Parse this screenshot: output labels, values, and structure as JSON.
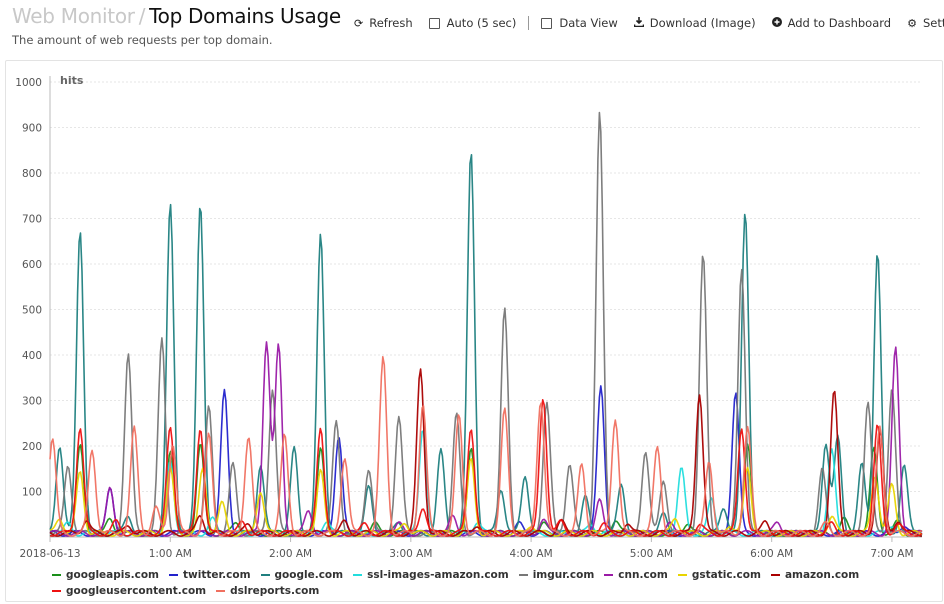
{
  "header": {
    "breadcrumb_parent": "Web Monitor",
    "breadcrumb_sep": "/",
    "page_title": "Top Domains Usage",
    "subtitle": "The amount of web requests per top domain."
  },
  "toolbar": {
    "refresh": "Refresh",
    "auto": "Auto (5 sec)",
    "data_view": "Data View",
    "download": "Download (Image)",
    "add_dashboard": "Add to Dashboard",
    "settings": "Setti"
  },
  "chart_data": {
    "type": "line",
    "ylabel": "hits",
    "ylim": [
      0,
      1000
    ],
    "yticks": [
      100,
      200,
      300,
      400,
      500,
      600,
      700,
      800,
      900,
      1000
    ],
    "xlim": [
      0,
      7.25
    ],
    "xticks": [
      {
        "x": 0,
        "label": "2018-06-13"
      },
      {
        "x": 1,
        "label": "1:00 AM"
      },
      {
        "x": 2,
        "label": "2:00 AM"
      },
      {
        "x": 3,
        "label": "3:00 AM"
      },
      {
        "x": 4,
        "label": "4:00 AM"
      },
      {
        "x": 5,
        "label": "5:00 AM"
      },
      {
        "x": 6,
        "label": "6:00 AM"
      },
      {
        "x": 7,
        "label": "7:00 AM"
      }
    ],
    "grid": true,
    "legend_position": "bottom",
    "series": [
      {
        "name": "googleapis.com",
        "color": "#1a8f1a",
        "peaks": [
          [
            0.25,
            190
          ],
          [
            0.5,
            30
          ],
          [
            1.0,
            185
          ],
          [
            1.25,
            195
          ],
          [
            1.55,
            25
          ],
          [
            2.25,
            190
          ],
          [
            2.7,
            20
          ],
          [
            3.5,
            185
          ],
          [
            4.1,
            25
          ],
          [
            4.7,
            30
          ],
          [
            5.3,
            25
          ],
          [
            5.8,
            190
          ],
          [
            6.6,
            30
          ],
          [
            6.85,
            185
          ],
          [
            7.05,
            25
          ]
        ]
      },
      {
        "name": "twitter.com",
        "color": "#2222cc",
        "peaks": [
          [
            0.5,
            105
          ],
          [
            1.45,
            310
          ],
          [
            2.4,
            215
          ],
          [
            3.9,
            20
          ],
          [
            4.58,
            325
          ],
          [
            5.7,
            310
          ],
          [
            7.1,
            20
          ]
        ]
      },
      {
        "name": "google.com",
        "color": "#1f7f7f",
        "peaks": [
          [
            0.08,
            195
          ],
          [
            0.25,
            670
          ],
          [
            0.65,
            40
          ],
          [
            1.0,
            720
          ],
          [
            1.25,
            725
          ],
          [
            1.75,
            150
          ],
          [
            2.03,
            185
          ],
          [
            2.25,
            655
          ],
          [
            2.65,
            100
          ],
          [
            2.9,
            25
          ],
          [
            3.25,
            180
          ],
          [
            3.5,
            840
          ],
          [
            3.75,
            100
          ],
          [
            3.95,
            130
          ],
          [
            4.45,
            80
          ],
          [
            4.75,
            110
          ],
          [
            5.1,
            40
          ],
          [
            5.6,
            60
          ],
          [
            5.78,
            710
          ],
          [
            6.45,
            200
          ],
          [
            6.55,
            210
          ],
          [
            6.75,
            150
          ],
          [
            6.88,
            620
          ],
          [
            7.1,
            150
          ]
        ]
      },
      {
        "name": "ssl-images-amazon.com",
        "color": "#22dddd",
        "peaks": [
          [
            0.15,
            20
          ],
          [
            1.0,
            160
          ],
          [
            1.35,
            30
          ],
          [
            2.3,
            30
          ],
          [
            3.1,
            235
          ],
          [
            3.55,
            25
          ],
          [
            4.5,
            20
          ],
          [
            5.25,
            140
          ],
          [
            5.5,
            75
          ],
          [
            6.5,
            180
          ],
          [
            7.0,
            20
          ]
        ]
      },
      {
        "name": "imgur.com",
        "color": "#777777",
        "peaks": [
          [
            0.15,
            150
          ],
          [
            0.65,
            395
          ],
          [
            0.93,
            425
          ],
          [
            1.32,
            275
          ],
          [
            1.52,
            150
          ],
          [
            1.85,
            320
          ],
          [
            2.38,
            245
          ],
          [
            2.65,
            145
          ],
          [
            2.9,
            258
          ],
          [
            3.38,
            260
          ],
          [
            3.78,
            490
          ],
          [
            4.13,
            290
          ],
          [
            4.32,
            155
          ],
          [
            4.57,
            925
          ],
          [
            4.95,
            180
          ],
          [
            5.1,
            120
          ],
          [
            5.43,
            610
          ],
          [
            5.75,
            585
          ],
          [
            6.42,
            140
          ],
          [
            6.8,
            290
          ],
          [
            7.0,
            320
          ]
        ]
      },
      {
        "name": "cnn.com",
        "color": "#9a1aa6",
        "peaks": [
          [
            0.5,
            100
          ],
          [
            1.8,
            425
          ],
          [
            1.9,
            410
          ],
          [
            2.15,
            50
          ],
          [
            2.9,
            20
          ],
          [
            3.35,
            35
          ],
          [
            4.1,
            30
          ],
          [
            4.57,
            70
          ],
          [
            5.15,
            20
          ],
          [
            6.05,
            25
          ],
          [
            7.03,
            405
          ]
        ]
      },
      {
        "name": "gstatic.com",
        "color": "#e8d400",
        "peaks": [
          [
            0.08,
            35
          ],
          [
            0.25,
            135
          ],
          [
            1.0,
            140
          ],
          [
            1.27,
            140
          ],
          [
            1.43,
            65
          ],
          [
            1.75,
            95
          ],
          [
            2.25,
            135
          ],
          [
            2.95,
            25
          ],
          [
            3.5,
            160
          ],
          [
            4.0,
            20
          ],
          [
            5.2,
            35
          ],
          [
            5.65,
            20
          ],
          [
            5.8,
            145
          ],
          [
            6.5,
            40
          ],
          [
            6.86,
            130
          ],
          [
            7.0,
            105
          ]
        ]
      },
      {
        "name": "amazon.com",
        "color": "#aa0000",
        "peaks": [
          [
            0.3,
            30
          ],
          [
            0.65,
            20
          ],
          [
            1.25,
            40
          ],
          [
            1.65,
            20
          ],
          [
            2.45,
            25
          ],
          [
            3.08,
            360
          ],
          [
            3.55,
            20
          ],
          [
            4.25,
            25
          ],
          [
            4.8,
            25
          ],
          [
            5.4,
            310
          ],
          [
            5.95,
            25
          ],
          [
            6.52,
            310
          ],
          [
            6.9,
            225
          ],
          [
            7.05,
            30
          ]
        ]
      },
      {
        "name": "googleusercontent.com",
        "color": "#ee1111",
        "peaks": [
          [
            0.25,
            235
          ],
          [
            0.55,
            25
          ],
          [
            1.0,
            235
          ],
          [
            1.25,
            235
          ],
          [
            1.6,
            25
          ],
          [
            2.25,
            235
          ],
          [
            2.62,
            20
          ],
          [
            3.1,
            60
          ],
          [
            3.5,
            235
          ],
          [
            4.1,
            300
          ],
          [
            4.25,
            25
          ],
          [
            4.6,
            20
          ],
          [
            5.4,
            20
          ],
          [
            5.75,
            235
          ],
          [
            6.5,
            20
          ],
          [
            6.88,
            235
          ],
          [
            7.05,
            20
          ]
        ]
      },
      {
        "name": "dslreports.com",
        "color": "#f07060",
        "peaks": [
          [
            0.02,
            210
          ],
          [
            0.35,
            185
          ],
          [
            0.7,
            230
          ],
          [
            0.88,
            55
          ],
          [
            1.02,
            200
          ],
          [
            1.32,
            215
          ],
          [
            1.65,
            215
          ],
          [
            1.95,
            215
          ],
          [
            2.45,
            170
          ],
          [
            2.77,
            385
          ],
          [
            3.1,
            285
          ],
          [
            3.4,
            260
          ],
          [
            3.78,
            270
          ],
          [
            4.08,
            295
          ],
          [
            4.42,
            150
          ],
          [
            4.7,
            255
          ],
          [
            5.05,
            190
          ],
          [
            5.48,
            160
          ],
          [
            5.8,
            230
          ],
          [
            6.45,
            20
          ],
          [
            6.9,
            235
          ]
        ]
      }
    ]
  }
}
